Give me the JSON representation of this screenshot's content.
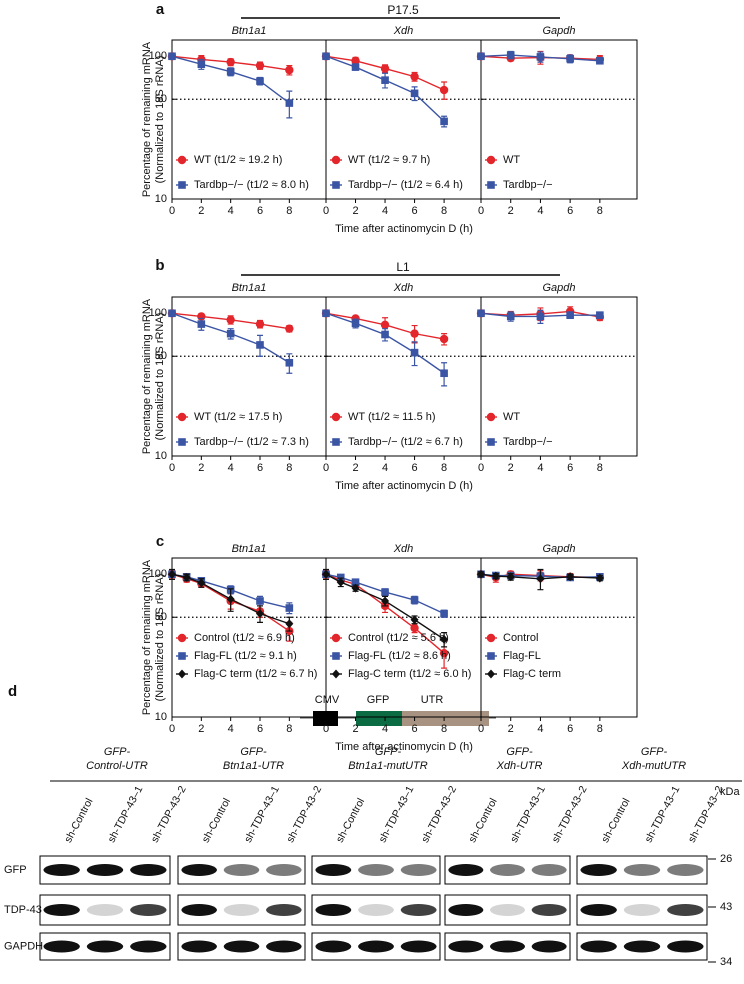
{
  "panels": [
    {
      "label": "a",
      "stage": "P17.5",
      "y_label": [
        "Percentage of remaining mRNA",
        "(Normalized to 18S rRNA)"
      ],
      "x_label": "Time after actinomycin D (h)"
    },
    {
      "label": "b",
      "stage": "L1",
      "y_label": [
        "Percentage of remaining mRNA",
        "(Normalized to 18S rRNA)"
      ],
      "x_label": "Time after actinomycin D (h)"
    },
    {
      "label": "c",
      "y_label": [
        "Percentage of remaining mRNA",
        "(Normalized to 18S rRNA)"
      ],
      "x_label": "Time after actinomycin D (h)"
    }
  ],
  "chart_data": [
    {
      "type": "line",
      "title": "Btn1a1",
      "log_y": true,
      "ylim": [
        10,
        130
      ],
      "yticks": [
        10,
        50,
        100
      ],
      "xlim": [
        0,
        10.5
      ],
      "xticks": [
        0,
        2,
        4,
        6,
        8
      ],
      "reference_line": 50,
      "legend": "lower left",
      "x": [
        0,
        2,
        4,
        6,
        8
      ],
      "series": [
        {
          "name": "WT (t1/2 ≈ 19.2 h)",
          "color": "#e3262b",
          "marker": "circle",
          "values": [
            100,
            95,
            91,
            86,
            80
          ],
          "errors": [
            0,
            6,
            5,
            5,
            6
          ]
        },
        {
          "name": "Tardbp−/− (t1/2 ≈ 8.0 h)",
          "color": "#3b55a5",
          "marker": "square",
          "values": [
            100,
            88,
            78,
            67,
            47
          ],
          "errors": [
            0,
            7,
            5,
            4,
            10
          ]
        }
      ]
    },
    {
      "type": "line",
      "title": "Xdh",
      "log_y": true,
      "ylim": [
        10,
        130
      ],
      "yticks": [
        10,
        50,
        100
      ],
      "xlim": [
        0,
        10.5
      ],
      "xticks": [
        0,
        2,
        4,
        6,
        8
      ],
      "reference_line": 50,
      "legend": "lower left",
      "x": [
        0,
        2,
        4,
        6,
        8
      ],
      "series": [
        {
          "name": "WT (t1/2 ≈ 9.7 h)",
          "color": "#e3262b",
          "marker": "circle",
          "values": [
            100,
            93,
            82,
            72,
            58
          ],
          "errors": [
            0,
            5,
            5,
            5,
            8
          ]
        },
        {
          "name": "Tardbp−/− (t1/2 ≈ 6.4 h)",
          "color": "#3b55a5",
          "marker": "square",
          "values": [
            100,
            84,
            68,
            55,
            35
          ],
          "errors": [
            0,
            4,
            8,
            6,
            3
          ]
        }
      ]
    },
    {
      "type": "line",
      "title": "Gapdh",
      "log_y": true,
      "ylim": [
        10,
        130
      ],
      "yticks": [
        10,
        50,
        100
      ],
      "xlim": [
        0,
        10.5
      ],
      "xticks": [
        0,
        2,
        4,
        6,
        8
      ],
      "reference_line": 50,
      "legend": "lower left",
      "x": [
        0,
        2,
        4,
        6,
        8
      ],
      "series": [
        {
          "name": "WT",
          "color": "#e3262b",
          "marker": "circle",
          "values": [
            100,
            97,
            98,
            97,
            95
          ],
          "errors": [
            0,
            4,
            10,
            5,
            6
          ]
        },
        {
          "name": "Tardbp−/−",
          "color": "#3b55a5",
          "marker": "square",
          "values": [
            100,
            102,
            99,
            96,
            93
          ],
          "errors": [
            0,
            6,
            8,
            6,
            4
          ]
        }
      ]
    },
    {
      "type": "line",
      "title": "Btn1a1",
      "log_y": true,
      "ylim": [
        10,
        130
      ],
      "yticks": [
        10,
        50,
        100
      ],
      "xlim": [
        0,
        10.5
      ],
      "xticks": [
        0,
        2,
        4,
        6,
        8
      ],
      "reference_line": 50,
      "legend": "lower left",
      "x": [
        0,
        2,
        4,
        6,
        8
      ],
      "series": [
        {
          "name": "WT (t1/2 ≈ 17.5 h)",
          "color": "#e3262b",
          "marker": "circle",
          "values": [
            100,
            95,
            90,
            84,
            78
          ],
          "errors": [
            0,
            4,
            6,
            5,
            4
          ]
        },
        {
          "name": "Tardbp−/− (t1/2 ≈ 7.3 h)",
          "color": "#3b55a5",
          "marker": "square",
          "values": [
            100,
            84,
            72,
            60,
            45
          ],
          "errors": [
            0,
            8,
            6,
            10,
            7
          ]
        }
      ]
    },
    {
      "type": "line",
      "title": "Xdh",
      "log_y": true,
      "ylim": [
        10,
        130
      ],
      "yticks": [
        10,
        50,
        100
      ],
      "xlim": [
        0,
        10.5
      ],
      "xticks": [
        0,
        2,
        4,
        6,
        8
      ],
      "reference_line": 50,
      "legend": "lower left",
      "x": [
        0,
        2,
        4,
        6,
        8
      ],
      "series": [
        {
          "name": "WT (t1/2 ≈ 11.5 h)",
          "color": "#e3262b",
          "marker": "circle",
          "values": [
            100,
            92,
            83,
            72,
            66
          ],
          "errors": [
            0,
            3,
            10,
            10,
            6
          ]
        },
        {
          "name": "Tardbp−/− (t1/2 ≈ 6.7 h)",
          "color": "#3b55a5",
          "marker": "square",
          "values": [
            100,
            85,
            71,
            53,
            38
          ],
          "errors": [
            0,
            6,
            7,
            10,
            7
          ]
        }
      ]
    },
    {
      "type": "line",
      "title": "Gapdh",
      "log_y": true,
      "ylim": [
        10,
        130
      ],
      "yticks": [
        10,
        50,
        100
      ],
      "xlim": [
        0,
        10.5
      ],
      "xticks": [
        0,
        2,
        4,
        6,
        8
      ],
      "reference_line": 50,
      "legend": "lower left",
      "x": [
        0,
        2,
        4,
        6,
        8
      ],
      "series": [
        {
          "name": "WT",
          "color": "#e3262b",
          "marker": "circle",
          "values": [
            100,
            97,
            99,
            103,
            94
          ],
          "errors": [
            0,
            6,
            10,
            8,
            5
          ]
        },
        {
          "name": "Tardbp−/−",
          "color": "#3b55a5",
          "marker": "square",
          "values": [
            100,
            95,
            95,
            97,
            97
          ],
          "errors": [
            0,
            7,
            10,
            5,
            3
          ]
        }
      ]
    },
    {
      "type": "line",
      "title": "Btn1a1",
      "log_y": true,
      "ylim": [
        10,
        130
      ],
      "yticks": [
        10,
        50,
        100
      ],
      "xlim": [
        0,
        10.5
      ],
      "xticks": [
        0,
        2,
        4,
        6,
        8
      ],
      "reference_line": 50,
      "legend": "lower left",
      "x": [
        0,
        1,
        2,
        4,
        6,
        8
      ],
      "series": [
        {
          "name": "Control (t1/2 ≈ 6.9 h)",
          "color": "#e3262b",
          "marker": "circle",
          "values": [
            100,
            93,
            86,
            65,
            55,
            40
          ],
          "errors": [
            6,
            5,
            5,
            8,
            5,
            6
          ]
        },
        {
          "name": "Flag-FL (t1/2 ≈ 9.1 h)",
          "color": "#3b55a5",
          "marker": "square",
          "values": [
            100,
            96,
            90,
            78,
            65,
            58
          ],
          "errors": [
            5,
            4,
            3,
            5,
            5,
            5
          ]
        },
        {
          "name": "Flag-C term (t1/2 ≈ 6.7 h)",
          "color": "#111111",
          "marker": "diamond",
          "values": [
            100,
            95,
            87,
            67,
            53,
            45
          ],
          "errors": [
            8,
            5,
            6,
            12,
            7,
            5
          ]
        }
      ]
    },
    {
      "type": "line",
      "title": "Xdh",
      "log_y": true,
      "ylim": [
        10,
        130
      ],
      "yticks": [
        10,
        50,
        100
      ],
      "xlim": [
        0,
        10.5
      ],
      "xticks": [
        0,
        2,
        4,
        6,
        8
      ],
      "reference_line": 50,
      "legend": "lower left",
      "x": [
        0,
        1,
        2,
        4,
        6,
        8
      ],
      "series": [
        {
          "name": "Control (t1/2 ≈ 5.6 h)",
          "color": "#e3262b",
          "marker": "circle",
          "values": [
            100,
            91,
            85,
            60,
            42,
            28
          ],
          "errors": [
            6,
            4,
            4,
            6,
            3,
            6
          ]
        },
        {
          "name": "Flag-FL (t1/2 ≈ 8.6 h)",
          "color": "#3b55a5",
          "marker": "square",
          "values": [
            100,
            95,
            88,
            75,
            66,
            53
          ],
          "errors": [
            5,
            4,
            3,
            4,
            4,
            3
          ]
        },
        {
          "name": "Flag-C term (t1/2 ≈ 6.0 h)",
          "color": "#111111",
          "marker": "diamond",
          "values": [
            100,
            88,
            80,
            65,
            48,
            35
          ],
          "errors": [
            8,
            6,
            4,
            5,
            3,
            4
          ]
        }
      ]
    },
    {
      "type": "line",
      "title": "Gapdh",
      "log_y": true,
      "ylim": [
        10,
        130
      ],
      "yticks": [
        10,
        50,
        100
      ],
      "xlim": [
        0,
        10.5
      ],
      "xticks": [
        0,
        2,
        4,
        6,
        8
      ],
      "reference_line": 50,
      "legend": "lower left",
      "x": [
        0,
        1,
        2,
        4,
        6,
        8
      ],
      "series": [
        {
          "name": "Control",
          "color": "#e3262b",
          "marker": "circle",
          "values": [
            100,
            95,
            100,
            98,
            96,
            95
          ],
          "errors": [
            4,
            7,
            5,
            8,
            5,
            3
          ]
        },
        {
          "name": "Flag-FL",
          "color": "#3b55a5",
          "marker": "square",
          "values": [
            100,
            98,
            98,
            97,
            95,
            96
          ],
          "errors": [
            3,
            4,
            3,
            5,
            3,
            3
          ]
        },
        {
          "name": "Flag-C term",
          "color": "#111111",
          "marker": "diamond",
          "values": [
            100,
            97,
            96,
            93,
            96,
            94
          ],
          "errors": [
            4,
            4,
            5,
            15,
            4,
            4
          ]
        }
      ]
    }
  ],
  "blots": {
    "label": "d",
    "construct": [
      "CMV",
      "GFP",
      "UTR"
    ],
    "unit": "kDa",
    "markers": [
      "26",
      "43",
      "34"
    ],
    "rows": [
      "GFP",
      "TDP-43",
      "GAPDH"
    ],
    "lanes": [
      "sh-Control",
      "sh-TDP-43–1",
      "sh-TDP-43–2"
    ],
    "groups": [
      [
        "GFP-",
        "Control-UTR"
      ],
      [
        "GFP-",
        "Btn1a1-UTR"
      ],
      [
        "GFP-",
        "Btn1a1-mutUTR"
      ],
      [
        "GFP-",
        "Xdh-UTR"
      ],
      [
        "GFP-",
        "Xdh-mutUTR"
      ]
    ]
  }
}
